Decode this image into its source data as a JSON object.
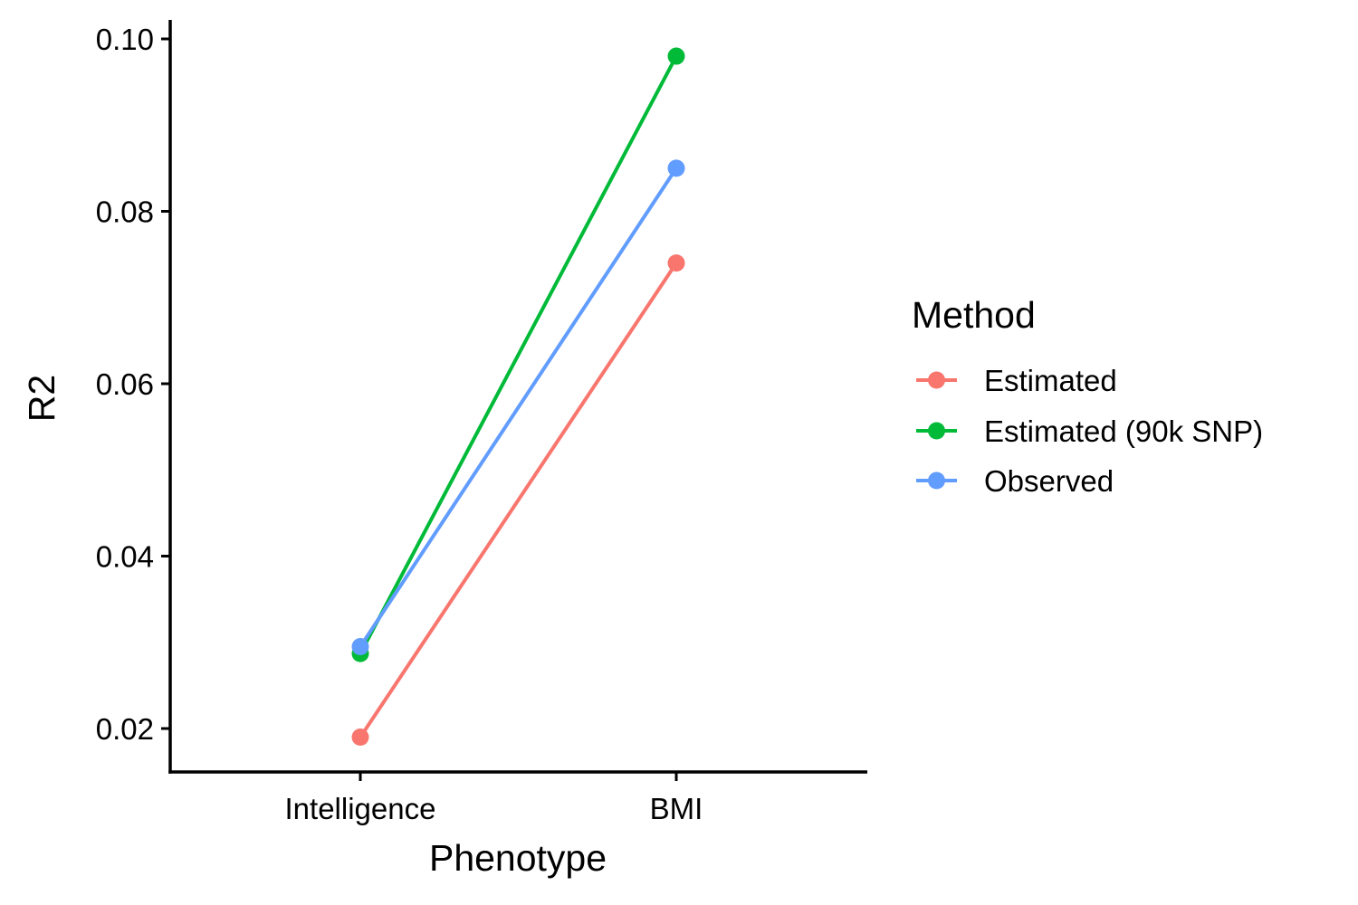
{
  "chart_data": {
    "type": "line",
    "categories": [
      "Intelligence",
      "BMI"
    ],
    "xlabel": "Phenotype",
    "ylabel": "R2",
    "ylim": [
      0.015,
      0.1
    ],
    "y_ticks": [
      0.02,
      0.04,
      0.06,
      0.08,
      0.1
    ],
    "y_tick_labels": [
      "0.02",
      "0.04",
      "0.06",
      "0.08",
      "0.10"
    ],
    "grid": false,
    "legend_position": "right",
    "legend_title": "Method",
    "series": [
      {
        "name": "Estimated",
        "color": "#F8766D",
        "values": [
          0.019,
          0.074
        ]
      },
      {
        "name": "Estimated (90k SNP)",
        "color": "#00BA38",
        "values": [
          0.0287,
          0.098
        ]
      },
      {
        "name": "Observed",
        "color": "#619CFF",
        "values": [
          0.0295,
          0.085
        ]
      }
    ]
  }
}
